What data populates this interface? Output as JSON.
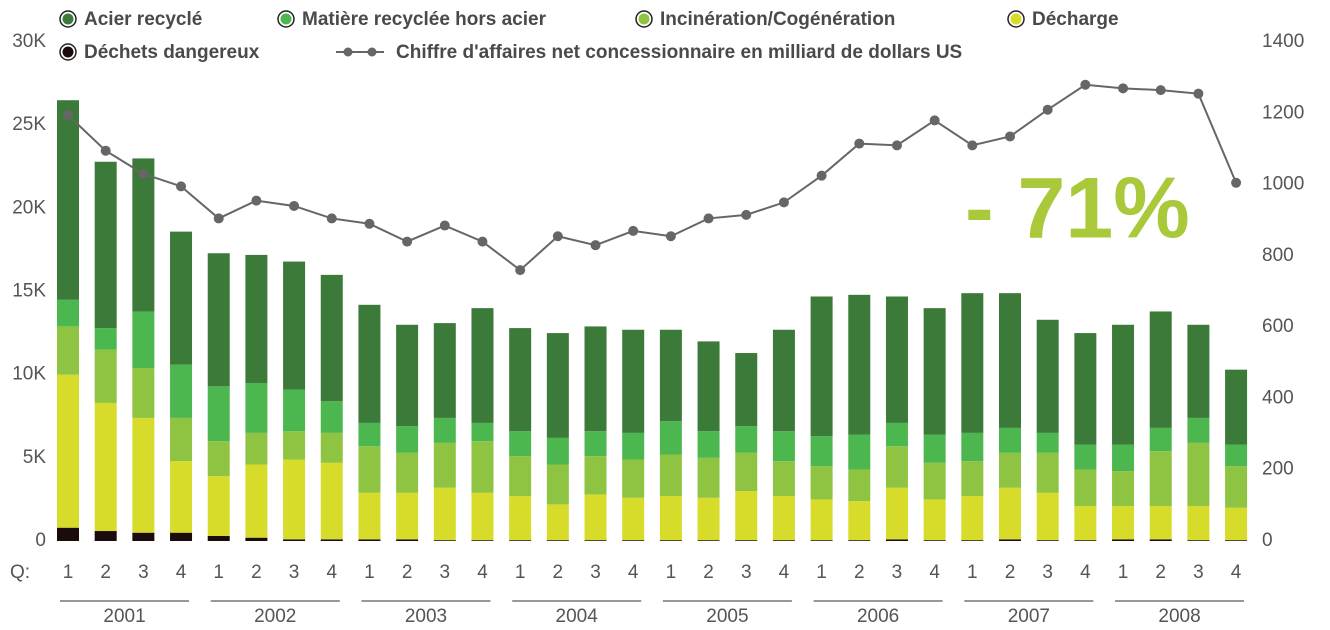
{
  "chart_data": {
    "type": "bar",
    "categories": [
      "1",
      "2",
      "3",
      "4",
      "1",
      "2",
      "3",
      "4",
      "1",
      "2",
      "3",
      "4",
      "1",
      "2",
      "3",
      "4",
      "1",
      "2",
      "3",
      "4",
      "1",
      "2",
      "3",
      "4",
      "1",
      "2",
      "3",
      "4",
      "1",
      "2",
      "3",
      "4"
    ],
    "quarter_prefix": "Q:",
    "years": [
      "2001",
      "2002",
      "2003",
      "2004",
      "2005",
      "2006",
      "2007",
      "2008"
    ],
    "annotation": "- 71%",
    "ylim": [
      0,
      30000
    ],
    "yticks": [
      0,
      {
        "value": 5000,
        "label": "5K"
      },
      {
        "value": 10000,
        "label": "10K"
      },
      {
        "value": 15000,
        "label": "15K"
      },
      {
        "value": 20000,
        "label": "20K"
      },
      {
        "value": 25000,
        "label": "25K"
      },
      {
        "value": 30000,
        "label": "30K"
      }
    ],
    "y2lim": [
      0,
      1400
    ],
    "y2ticks": [
      0,
      200,
      400,
      600,
      800,
      1000,
      1200,
      1400
    ],
    "stacked": true,
    "series": [
      {
        "name": "Acier recyclé",
        "color": "#3b7a39",
        "values": [
          12000,
          10000,
          9200,
          8000,
          8000,
          7700,
          7700,
          7600,
          7100,
          6100,
          5700,
          6900,
          6200,
          6300,
          6300,
          6200,
          5500,
          5400,
          4400,
          6100,
          8400,
          8400,
          7600,
          7600,
          8400,
          8100,
          6800,
          6700,
          7200,
          7000,
          5600,
          4500
        ]
      },
      {
        "name": "Matière recyclée hors acier",
        "color": "#4db74f",
        "values": [
          1600,
          1300,
          3400,
          3200,
          3300,
          3000,
          2500,
          1900,
          1400,
          1600,
          1500,
          1100,
          1500,
          1600,
          1500,
          1600,
          2000,
          1600,
          1600,
          1800,
          1800,
          2100,
          1400,
          1700,
          1700,
          1500,
          1200,
          1500,
          1600,
          1400,
          1500,
          1300
        ]
      },
      {
        "name": "Incinération/Cogénération",
        "color": "#8fc442",
        "values": [
          2900,
          3200,
          3000,
          2600,
          2100,
          1900,
          1700,
          1800,
          2800,
          2400,
          2700,
          3100,
          2400,
          2400,
          2300,
          2300,
          2500,
          2400,
          2300,
          2100,
          2000,
          1900,
          2500,
          2200,
          2100,
          2100,
          2400,
          2200,
          2100,
          3300,
          3800,
          2500
        ]
      },
      {
        "name": "Décharge",
        "color": "#d7dc2b",
        "values": [
          9200,
          7700,
          6900,
          4300,
          3600,
          4400,
          4800,
          4600,
          2800,
          2800,
          3150,
          2850,
          2650,
          2150,
          2750,
          2550,
          2650,
          2550,
          2950,
          2650,
          2450,
          2350,
          3100,
          2450,
          2650,
          3100,
          2850,
          2050,
          2000,
          2000,
          2050,
          1950
        ]
      },
      {
        "name": "Déchets dangereux",
        "color": "#1c0b0b",
        "values": [
          800,
          600,
          500,
          500,
          300,
          200,
          100,
          100,
          100,
          100,
          50,
          50,
          50,
          50,
          50,
          50,
          50,
          50,
          50,
          50,
          50,
          50,
          100,
          50,
          50,
          100,
          50,
          50,
          100,
          100,
          50,
          50
        ]
      },
      {
        "name": "Chiffre d'affaires net concessionnaire en milliard de dollars US",
        "color": "#666666",
        "type": "line",
        "axis": "y2",
        "values": [
          1195,
          1095,
          1030,
          995,
          905,
          955,
          940,
          905,
          890,
          840,
          885,
          840,
          760,
          855,
          830,
          870,
          855,
          905,
          915,
          950,
          1025,
          1115,
          1110,
          1180,
          1110,
          1135,
          1210,
          1280,
          1270,
          1265,
          1255,
          1005
        ]
      }
    ]
  }
}
